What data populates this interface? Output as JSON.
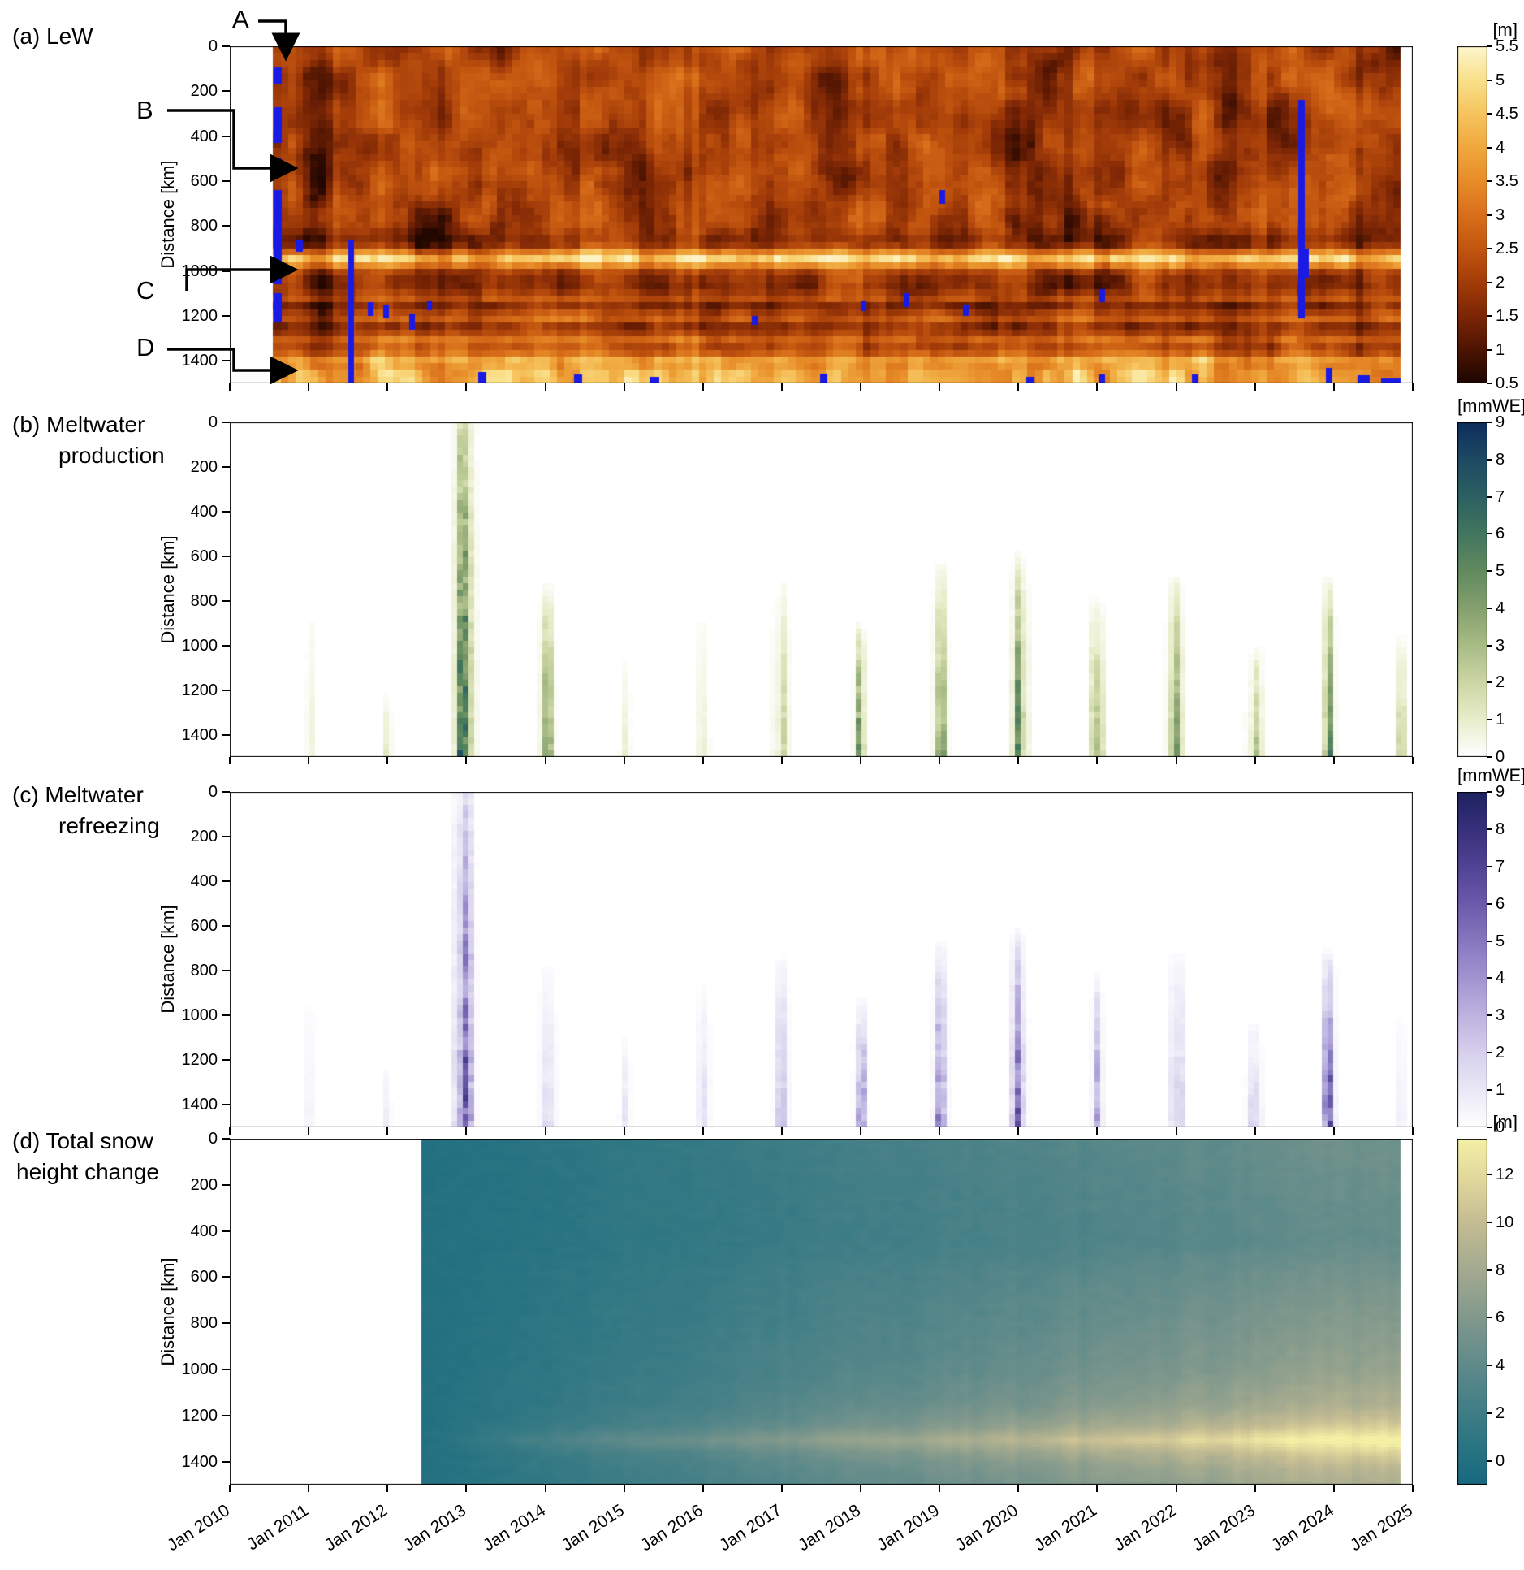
{
  "figure": {
    "panels": [
      {
        "id": "a",
        "label_line1": "(a) LeW",
        "label_line2": "",
        "ylabel": "Distance [km]",
        "colorbar_unit": "[m]"
      },
      {
        "id": "b",
        "label_line1": "(b) Meltwater",
        "label_line2": "production",
        "ylabel": "Distance [km]",
        "colorbar_unit": "[mmWE]"
      },
      {
        "id": "c",
        "label_line1": "(c) Meltwater",
        "label_line2": "refreezing",
        "ylabel": "Distance [km]",
        "colorbar_unit": "[mmWE]"
      },
      {
        "id": "d",
        "label_line1": "(d) Total snow",
        "label_line2": "height change",
        "ylabel": "Distance [km]",
        "colorbar_unit": "[m]"
      }
    ],
    "annotations": [
      {
        "text": "A"
      },
      {
        "text": "B"
      },
      {
        "text": "C"
      },
      {
        "text": "D"
      }
    ],
    "xticks": [
      "Jan 2010",
      "Jan 2011",
      "Jan 2012",
      "Jan 2013",
      "Jan 2014",
      "Jan 2015",
      "Jan 2016",
      "Jan 2017",
      "Jan 2018",
      "Jan 2019",
      "Jan 2020",
      "Jan 2021",
      "Jan 2022",
      "Jan 2023",
      "Jan 2024",
      "Jan 2025"
    ]
  },
  "chart_data": [
    {
      "id": "a",
      "type": "heatmap",
      "name": "LeW",
      "x_range": [
        2010.55,
        2024.85
      ],
      "x_axis_range_years": [
        2010,
        2025
      ],
      "ylabel": "Distance [km]",
      "y_range_km": [
        0,
        1500
      ],
      "yticks_km": [
        0,
        200,
        400,
        600,
        800,
        1000,
        1200,
        1400
      ],
      "value_unit": "[m]",
      "value_range": [
        0.5,
        5.5
      ],
      "colorbar_ticks": [
        5.5,
        5,
        4.5,
        4,
        3.5,
        3,
        2.5,
        2,
        1.5,
        1,
        0.5
      ],
      "colormap": [
        [
          0,
          "#1d0500"
        ],
        [
          0.1,
          "#4e1402"
        ],
        [
          0.2,
          "#7c2605"
        ],
        [
          0.3,
          "#a33c09"
        ],
        [
          0.4,
          "#c2550f"
        ],
        [
          0.5,
          "#d86f1b"
        ],
        [
          0.6,
          "#e78c28"
        ],
        [
          0.7,
          "#f0a83e"
        ],
        [
          0.8,
          "#f6c35e"
        ],
        [
          0.9,
          "#f9e08a"
        ],
        [
          1,
          "#fdf5cd"
        ]
      ],
      "missing_color": "#1a1ae6",
      "features": {
        "bright_band_km": 945,
        "bright_band_value": 5.0,
        "bottom_bright_zone_km": [
          1330,
          1500
        ],
        "bottom_bright_value": 5.0,
        "background_value": 2.2,
        "dark_patch_value": 1.0,
        "striped_zone_km": [
          1090,
          1400
        ]
      },
      "missing_data_segments": [
        {
          "t0": 2010.56,
          "t1": 2010.66,
          "km0": 95,
          "km1": 165
        },
        {
          "t0": 2010.56,
          "t1": 2010.66,
          "km0": 270,
          "km1": 430
        },
        {
          "t0": 2010.56,
          "t1": 2010.66,
          "km0": 500,
          "km1": 560
        },
        {
          "t0": 2010.56,
          "t1": 2010.66,
          "km0": 640,
          "km1": 1060
        },
        {
          "t0": 2010.56,
          "t1": 2010.66,
          "km0": 1100,
          "km1": 1230
        },
        {
          "t0": 2010.83,
          "t1": 2010.93,
          "km0": 860,
          "km1": 915
        },
        {
          "t0": 2011.5,
          "t1": 2011.58,
          "km0": 860,
          "km1": 1500
        },
        {
          "t0": 2011.75,
          "t1": 2011.82,
          "km0": 1140,
          "km1": 1200
        },
        {
          "t0": 2011.95,
          "t1": 2012.02,
          "km0": 1150,
          "km1": 1210
        },
        {
          "t0": 2012.28,
          "t1": 2012.35,
          "km0": 1190,
          "km1": 1260
        },
        {
          "t0": 2012.5,
          "t1": 2012.56,
          "km0": 1130,
          "km1": 1175
        },
        {
          "t0": 2013.15,
          "t1": 2013.25,
          "km0": 1450,
          "km1": 1500
        },
        {
          "t0": 2014.37,
          "t1": 2014.47,
          "km0": 1460,
          "km1": 1500
        },
        {
          "t0": 2015.32,
          "t1": 2015.45,
          "km0": 1470,
          "km1": 1500
        },
        {
          "t0": 2016.62,
          "t1": 2016.7,
          "km0": 1200,
          "km1": 1240
        },
        {
          "t0": 2017.48,
          "t1": 2017.58,
          "km0": 1455,
          "km1": 1500
        },
        {
          "t0": 2018.0,
          "t1": 2018.07,
          "km0": 1130,
          "km1": 1180
        },
        {
          "t0": 2018.55,
          "t1": 2018.62,
          "km0": 1100,
          "km1": 1160
        },
        {
          "t0": 2019.0,
          "t1": 2019.07,
          "km0": 640,
          "km1": 700
        },
        {
          "t0": 2019.3,
          "t1": 2019.37,
          "km0": 1150,
          "km1": 1200
        },
        {
          "t0": 2020.1,
          "t1": 2020.2,
          "km0": 1470,
          "km1": 1500
        },
        {
          "t0": 2021.02,
          "t1": 2021.1,
          "km0": 1080,
          "km1": 1140
        },
        {
          "t0": 2021.02,
          "t1": 2021.1,
          "km0": 1460,
          "km1": 1500
        },
        {
          "t0": 2022.2,
          "t1": 2022.28,
          "km0": 1460,
          "km1": 1500
        },
        {
          "t0": 2023.55,
          "t1": 2023.63,
          "km0": 240,
          "km1": 1210
        },
        {
          "t0": 2023.63,
          "t1": 2023.68,
          "km0": 900,
          "km1": 1030
        },
        {
          "t0": 2023.9,
          "t1": 2023.98,
          "km0": 1430,
          "km1": 1500
        },
        {
          "t0": 2024.3,
          "t1": 2024.45,
          "km0": 1465,
          "km1": 1500
        },
        {
          "t0": 2024.6,
          "t1": 2024.85,
          "km0": 1480,
          "km1": 1500
        }
      ]
    },
    {
      "id": "b",
      "type": "heatmap",
      "name": "Meltwater production",
      "x_range": [
        2010.0,
        2024.9
      ],
      "ylabel": "Distance [km]",
      "y_range_km": [
        0,
        1500
      ],
      "yticks_km": [
        0,
        200,
        400,
        600,
        800,
        1000,
        1200,
        1400
      ],
      "value_unit": "[mmWE]",
      "value_range": [
        0,
        9
      ],
      "colorbar_ticks": [
        9,
        8,
        7,
        6,
        5,
        4,
        3,
        2,
        1,
        0
      ],
      "colormap": [
        [
          0,
          "#ffffff"
        ],
        [
          0.111,
          "#e9edcb"
        ],
        [
          0.222,
          "#cbd6a4"
        ],
        [
          0.333,
          "#a9bc86"
        ],
        [
          0.444,
          "#84a06e"
        ],
        [
          0.556,
          "#628a5e"
        ],
        [
          0.667,
          "#42765e"
        ],
        [
          0.778,
          "#2c6062"
        ],
        [
          0.889,
          "#1d4a63"
        ],
        [
          1,
          "#0e2e5c"
        ]
      ],
      "melt_events": [
        {
          "t": 2011.02,
          "peak": 1.6,
          "top_km": 820,
          "w": 0.06
        },
        {
          "t": 2012.0,
          "peak": 1.2,
          "top_km": 1200,
          "w": 0.05
        },
        {
          "t": 2012.98,
          "peak": 9.0,
          "top_km": -300,
          "w": 0.1
        },
        {
          "t": 2014.03,
          "peak": 4.0,
          "top_km": 720,
          "w": 0.08
        },
        {
          "t": 2015.02,
          "peak": 1.4,
          "top_km": 1050,
          "w": 0.06
        },
        {
          "t": 2016.0,
          "peak": 2.2,
          "top_km": 820,
          "w": 0.07
        },
        {
          "t": 2017.0,
          "peak": 3.2,
          "top_km": 700,
          "w": 0.08
        },
        {
          "t": 2018.0,
          "peak": 5.5,
          "top_km": 900,
          "w": 0.07
        },
        {
          "t": 2019.0,
          "peak": 5.5,
          "top_km": 620,
          "w": 0.08
        },
        {
          "t": 2020.0,
          "peak": 6.0,
          "top_km": 580,
          "w": 0.09
        },
        {
          "t": 2021.0,
          "peak": 4.5,
          "top_km": 780,
          "w": 0.08
        },
        {
          "t": 2022.0,
          "peak": 5.5,
          "top_km": 680,
          "w": 0.09
        },
        {
          "t": 2023.0,
          "peak": 3.5,
          "top_km": 1000,
          "w": 0.08
        },
        {
          "t": 2023.93,
          "peak": 9.0,
          "top_km": 680,
          "w": 0.07
        },
        {
          "t": 2024.85,
          "peak": 2.6,
          "top_km": 950,
          "w": 0.06
        }
      ]
    },
    {
      "id": "c",
      "type": "heatmap",
      "name": "Meltwater refreezing",
      "x_range": [
        2010.0,
        2024.9
      ],
      "ylabel": "Distance [km]",
      "y_range_km": [
        0,
        1500
      ],
      "yticks_km": [
        0,
        200,
        400,
        600,
        800,
        1000,
        1200,
        1400
      ],
      "value_unit": "[mmWE]",
      "value_range": [
        0,
        9
      ],
      "colorbar_ticks": [
        9,
        8,
        7,
        6,
        5,
        4,
        3,
        2,
        1,
        0
      ],
      "colormap": [
        [
          0,
          "#ffffff"
        ],
        [
          0.111,
          "#ebe8f6"
        ],
        [
          0.222,
          "#d6d0ec"
        ],
        [
          0.333,
          "#bdb3e0"
        ],
        [
          0.444,
          "#a294d1"
        ],
        [
          0.556,
          "#8677bf"
        ],
        [
          0.667,
          "#6b5aab"
        ],
        [
          0.778,
          "#514394"
        ],
        [
          0.889,
          "#37307c"
        ],
        [
          1,
          "#1e2260"
        ]
      ],
      "refreeze_events": [
        {
          "t": 2011.02,
          "peak": 1.4,
          "top_km": 850,
          "w": 0.06
        },
        {
          "t": 2012.0,
          "peak": 1.0,
          "top_km": 1220,
          "w": 0.05
        },
        {
          "t": 2012.98,
          "peak": 8.6,
          "top_km": -300,
          "w": 0.1
        },
        {
          "t": 2014.03,
          "peak": 3.4,
          "top_km": 750,
          "w": 0.08
        },
        {
          "t": 2015.02,
          "peak": 1.2,
          "top_km": 1060,
          "w": 0.06
        },
        {
          "t": 2016.0,
          "peak": 1.9,
          "top_km": 840,
          "w": 0.07
        },
        {
          "t": 2017.0,
          "peak": 2.8,
          "top_km": 720,
          "w": 0.08
        },
        {
          "t": 2018.0,
          "peak": 4.8,
          "top_km": 920,
          "w": 0.07
        },
        {
          "t": 2019.0,
          "peak": 4.8,
          "top_km": 650,
          "w": 0.08
        },
        {
          "t": 2020.0,
          "peak": 5.2,
          "top_km": 600,
          "w": 0.09
        },
        {
          "t": 2021.0,
          "peak": 3.8,
          "top_km": 800,
          "w": 0.08
        },
        {
          "t": 2022.0,
          "peak": 4.8,
          "top_km": 700,
          "w": 0.09
        },
        {
          "t": 2023.0,
          "peak": 3.0,
          "top_km": 1020,
          "w": 0.08
        },
        {
          "t": 2023.93,
          "peak": 8.6,
          "top_km": 700,
          "w": 0.07
        },
        {
          "t": 2024.85,
          "peak": 2.2,
          "top_km": 960,
          "w": 0.06
        }
      ]
    },
    {
      "id": "d",
      "type": "heatmap",
      "name": "Total snow height change",
      "x_range": [
        2012.45,
        2024.85
      ],
      "ylabel": "Distance [km]",
      "y_range_km": [
        0,
        1500
      ],
      "yticks_km": [
        0,
        200,
        400,
        600,
        800,
        1000,
        1200,
        1400
      ],
      "value_unit": "[m]",
      "value_range": [
        -1,
        13.5
      ],
      "colorbar_ticks": [
        12,
        10,
        8,
        6,
        4,
        2,
        0
      ],
      "colormap": [
        [
          0,
          "#17697f"
        ],
        [
          0.14,
          "#2f7783"
        ],
        [
          0.3,
          "#548689"
        ],
        [
          0.45,
          "#79958c"
        ],
        [
          0.6,
          "#9ea78e"
        ],
        [
          0.75,
          "#c2bb93"
        ],
        [
          0.88,
          "#e0d69b"
        ],
        [
          1,
          "#f4f0a5"
        ]
      ],
      "band_km": 1305,
      "rate_profile_m_per_yr": [
        [
          0,
          0.42
        ],
        [
          250,
          0.38
        ],
        [
          450,
          0.36
        ],
        [
          600,
          0.45
        ],
        [
          800,
          0.52
        ],
        [
          1000,
          0.6
        ],
        [
          1150,
          0.72
        ],
        [
          1250,
          0.92
        ],
        [
          1310,
          1.08
        ],
        [
          1360,
          0.95
        ],
        [
          1430,
          0.8
        ],
        [
          1500,
          0.72
        ]
      ]
    }
  ]
}
